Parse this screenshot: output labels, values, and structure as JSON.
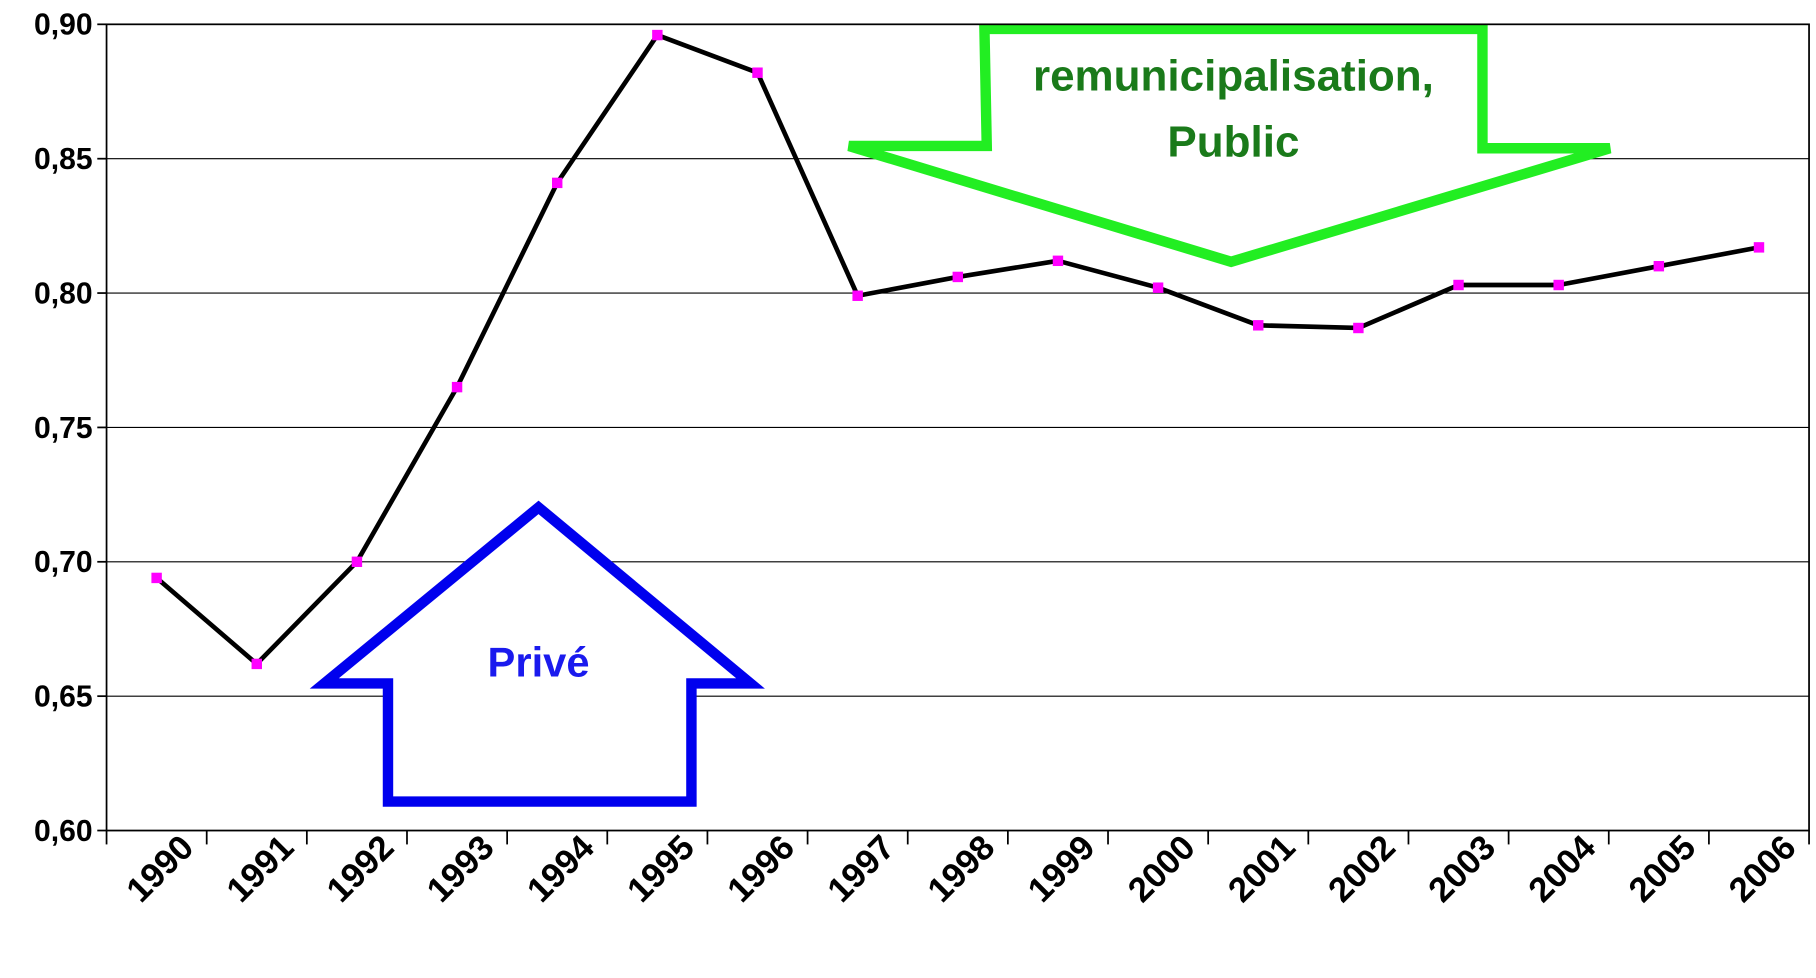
{
  "chart_data": {
    "type": "line",
    "categories": [
      "1990",
      "1991",
      "1992",
      "1993",
      "1994",
      "1995",
      "1996",
      "1997",
      "1998",
      "1999",
      "2000",
      "2001",
      "2002",
      "2003",
      "2004",
      "2005",
      "2006"
    ],
    "values": [
      0.694,
      0.662,
      0.7,
      0.765,
      0.841,
      0.896,
      0.882,
      0.799,
      0.806,
      0.812,
      0.802,
      0.788,
      0.787,
      0.803,
      0.803,
      0.81,
      0.817
    ],
    "color": "#000000",
    "marker_color": "#ff00ff",
    "ylim": [
      0.6,
      0.9
    ],
    "yticks": [
      {
        "value": 0.6,
        "label": "0,60"
      },
      {
        "value": 0.65,
        "label": "0,65"
      },
      {
        "value": 0.7,
        "label": "0,70"
      },
      {
        "value": 0.75,
        "label": "0,75"
      },
      {
        "value": 0.8,
        "label": "0,80"
      },
      {
        "value": 0.85,
        "label": "0,85"
      },
      {
        "value": 0.9,
        "label": "0,90"
      }
    ],
    "grid": true,
    "annotations": [
      "Privé",
      "remunicipalisation,",
      "Public"
    ]
  }
}
